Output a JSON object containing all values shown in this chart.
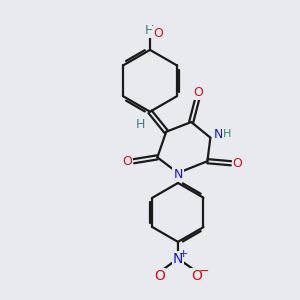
{
  "background_color": "#e8eaf0",
  "bond_color": "#1a1a1a",
  "N_color": "#1414cc",
  "O_color": "#cc1414",
  "H_color": "#3a8080",
  "line_width": 1.6,
  "figsize": [
    3.0,
    3.0
  ],
  "dpi": 100,
  "xlim": [
    0,
    10
  ],
  "ylim": [
    0,
    10
  ]
}
